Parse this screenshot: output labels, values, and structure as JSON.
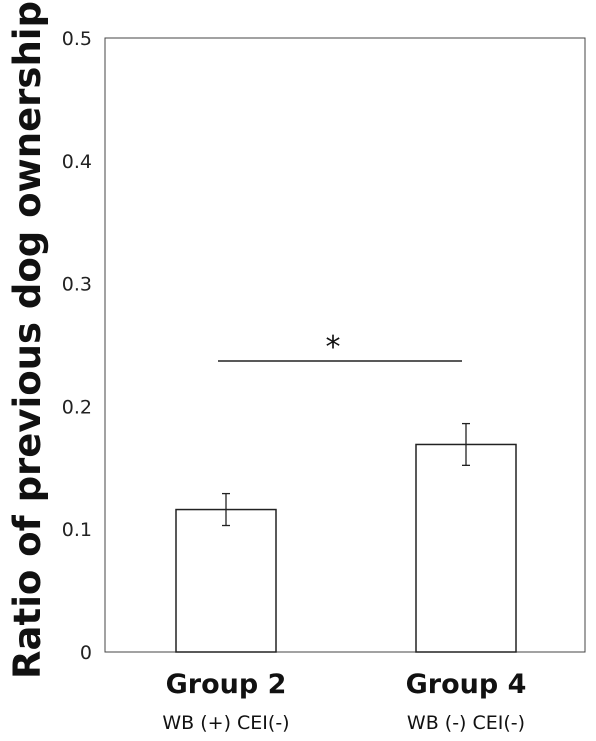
{
  "chart_data": {
    "type": "bar",
    "title": "",
    "xlabel": "",
    "ylabel": "Ratio of previous dog ownership",
    "ylim": [
      0,
      0.5
    ],
    "yticks": [
      "0",
      "0.1",
      "0.2",
      "0.3",
      "0.4",
      "0.5"
    ],
    "categories": [
      "Group 2",
      "Group 4"
    ],
    "subcategories": [
      "WB (+) CEI(-)",
      "WB (-) CEI(-)"
    ],
    "values": [
      0.116,
      0.169
    ],
    "errors": [
      0.013,
      0.017
    ],
    "significance": {
      "between": [
        0,
        1
      ],
      "label": "*",
      "y": 0.237
    },
    "grid": false,
    "legend": "none"
  }
}
